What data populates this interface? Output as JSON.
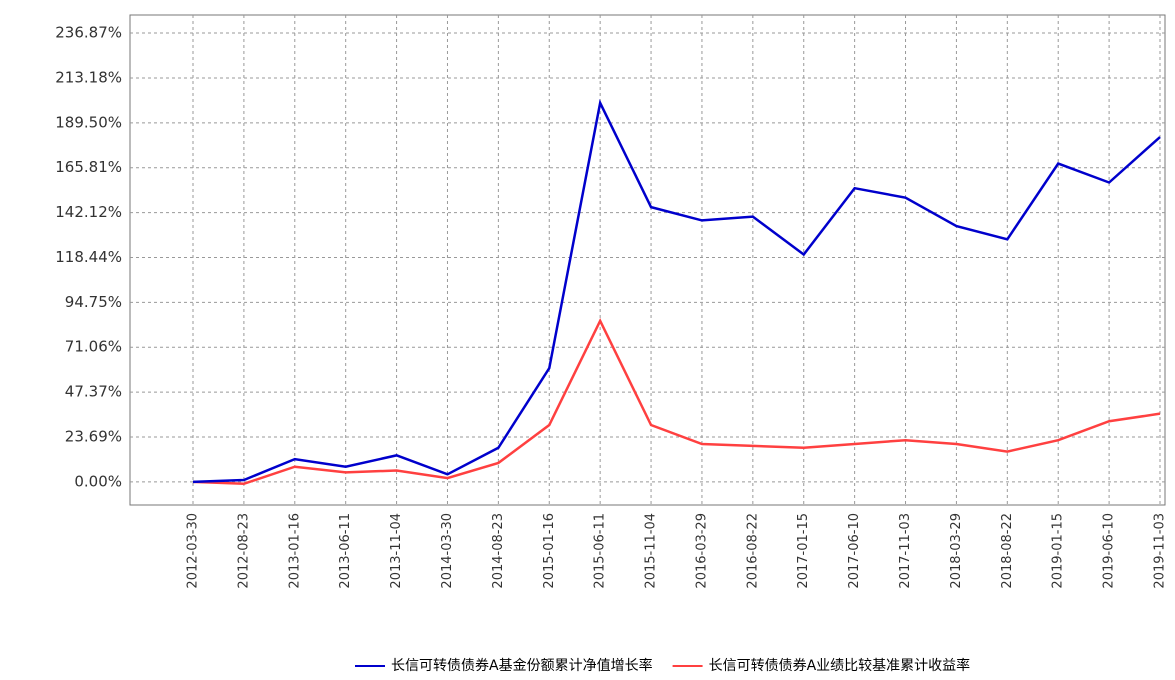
{
  "chart_data": {
    "type": "line",
    "x": [
      "2012-03-30",
      "2012-08-23",
      "2013-01-16",
      "2013-06-11",
      "2013-11-04",
      "2014-03-30",
      "2014-08-23",
      "2015-01-16",
      "2015-06-11",
      "2015-11-04",
      "2016-03-29",
      "2016-08-22",
      "2017-01-15",
      "2017-06-10",
      "2017-11-03",
      "2018-03-29",
      "2018-08-22",
      "2019-01-15",
      "2019-06-10",
      "2019-11-03"
    ],
    "series": [
      {
        "name": "长信可转债债券A基金份额累计净值增长率",
        "color": "#0000cc",
        "values": [
          0,
          1,
          12,
          8,
          14,
          4,
          18,
          60,
          200,
          145,
          138,
          140,
          120,
          155,
          150,
          135,
          128,
          168,
          158,
          182
        ]
      },
      {
        "name": "长信可转债债券A业绩比较基准累计收益率",
        "color": "#ff4040",
        "values": [
          0,
          -1,
          8,
          5,
          6,
          2,
          10,
          30,
          85,
          30,
          20,
          19,
          18,
          20,
          22,
          20,
          16,
          22,
          32,
          36
        ]
      }
    ],
    "ylim": [
      -12.2,
      246.4
    ],
    "yticks": [
      {
        "value": 0,
        "label": "0.00%"
      },
      {
        "value": 23.69,
        "label": "23.69%"
      },
      {
        "value": 47.37,
        "label": "47.37%"
      },
      {
        "value": 71.06,
        "label": "71.06%"
      },
      {
        "value": 94.75,
        "label": "94.75%"
      },
      {
        "value": 118.44,
        "label": "118.44%"
      },
      {
        "value": 142.12,
        "label": "142.12%"
      },
      {
        "value": 165.81,
        "label": "165.81%"
      },
      {
        "value": 189.5,
        "label": "189.50%"
      },
      {
        "value": 213.18,
        "label": "213.18%"
      },
      {
        "value": 236.87,
        "label": "236.87%"
      }
    ],
    "grid": true
  }
}
